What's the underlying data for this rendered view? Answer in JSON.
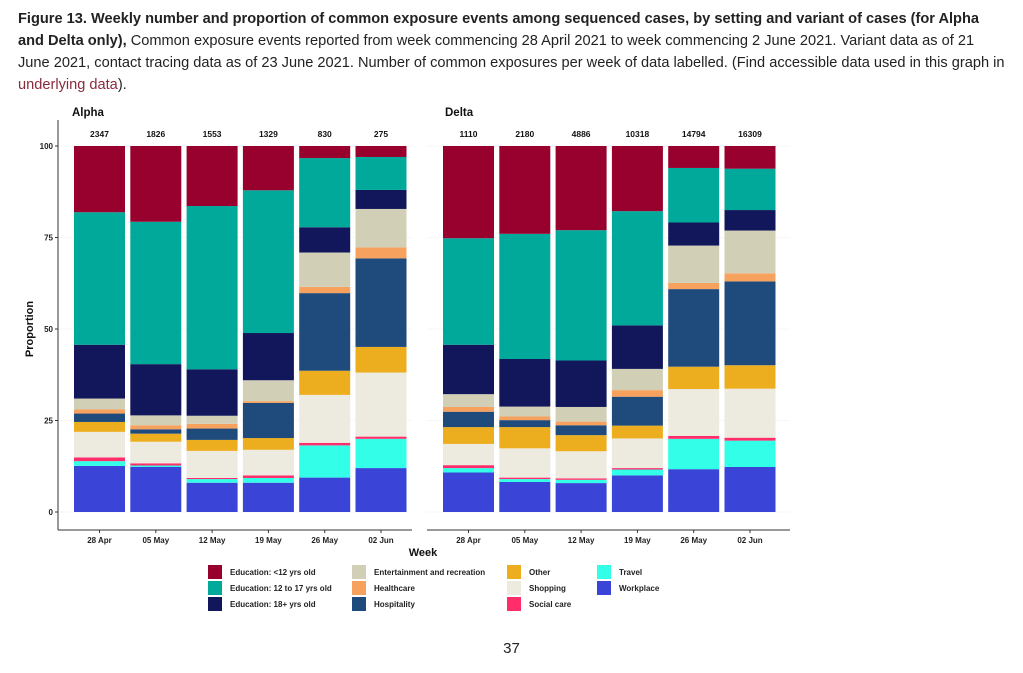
{
  "caption": {
    "bold": "Figure 13. Weekly number and proportion of common exposure events among sequenced cases, by setting and variant of cases (for Alpha and Delta only),",
    "text": " Common exposure events reported from week commencing 28 April 2021 to week commencing 2 June 2021. Variant data as of 21 June 2021, contact tracing data as of 23 June 2021. Number of common exposures per week of data labelled. (Find accessible data used in this graph in ",
    "link": "underlying data",
    "end": ")."
  },
  "page_number": "37",
  "chart_data": {
    "type": "bar",
    "stacked": true,
    "ylabel": "Proportion",
    "xlabel": "Week",
    "ylim": [
      0,
      100
    ],
    "yticks": [
      0,
      25,
      50,
      75,
      100
    ],
    "categories": [
      "28 Apr",
      "05 May",
      "12 May",
      "19 May",
      "26 May",
      "02 Jun"
    ],
    "legend_position": "bottom",
    "settings": [
      {
        "name": "Workplace",
        "color": "#3a44d6"
      },
      {
        "name": "Travel",
        "color": "#33ffe8"
      },
      {
        "name": "Social care",
        "color": "#ff2e6a"
      },
      {
        "name": "Shopping",
        "color": "#edeae0"
      },
      {
        "name": "Other",
        "color": "#ecae1e"
      },
      {
        "name": "Hospitality",
        "color": "#1f4a7c"
      },
      {
        "name": "Healthcare",
        "color": "#f6a25e"
      },
      {
        "name": "Entertainment and recreation",
        "color": "#d1cfb6"
      },
      {
        "name": "Education: 18+ yrs old",
        "color": "#11175a"
      },
      {
        "name": "Education: 12 to 17 yrs old",
        "color": "#00a99a"
      },
      {
        "name": "Education: <12 yrs old",
        "color": "#98002e"
      }
    ],
    "legend_columns": [
      [
        "Education: <12 yrs old",
        "Education: 12 to 17 yrs old",
        "Education: 18+ yrs old"
      ],
      [
        "Entertainment and recreation",
        "Healthcare",
        "Hospitality"
      ],
      [
        "Other",
        "Shopping",
        "Social care"
      ],
      [
        "Travel",
        "Workplace"
      ]
    ],
    "panels": [
      {
        "title": "Alpha",
        "totals": [
          2347,
          1826,
          1553,
          1329,
          830,
          275
        ],
        "series": [
          {
            "name": "Workplace",
            "values": [
              12.6,
              12.3,
              8.0,
              8.0,
              9.4,
              12.0
            ]
          },
          {
            "name": "Travel",
            "values": [
              1.3,
              0.4,
              1.0,
              1.3,
              8.8,
              8.0
            ]
          },
          {
            "name": "Social care",
            "values": [
              1.0,
              0.6,
              0.3,
              0.7,
              0.7,
              0.6
            ]
          },
          {
            "name": "Shopping",
            "values": [
              7.0,
              5.9,
              7.4,
              7.0,
              13.1,
              17.5
            ]
          },
          {
            "name": "Other",
            "values": [
              2.7,
              2.2,
              3.0,
              3.2,
              6.6,
              7.0
            ]
          },
          {
            "name": "Hospitality",
            "values": [
              2.3,
              1.2,
              3.1,
              9.6,
              21.2,
              24.2
            ]
          },
          {
            "name": "Healthcare",
            "values": [
              1.1,
              1.1,
              1.3,
              0.5,
              1.7,
              3.0
            ]
          },
          {
            "name": "Entertainment and recreation",
            "values": [
              3.0,
              2.7,
              2.2,
              5.7,
              9.4,
              10.5
            ]
          },
          {
            "name": "Education: 18+ yrs old",
            "values": [
              14.7,
              14.0,
              12.7,
              12.9,
              6.9,
              5.2
            ]
          },
          {
            "name": "Education: 12 to 17 yrs old",
            "values": [
              36.2,
              38.9,
              44.6,
              39.0,
              18.9,
              9.0
            ]
          },
          {
            "name": "Education: <12 yrs old",
            "values": [
              18.1,
              20.7,
              16.4,
              12.1,
              3.3,
              3.0
            ]
          }
        ]
      },
      {
        "title": "Delta",
        "totals": [
          1110,
          2180,
          4886,
          10318,
          14794,
          16309
        ],
        "series": [
          {
            "name": "Workplace",
            "values": [
              10.8,
              8.2,
              7.9,
              10.0,
              11.7,
              12.3
            ]
          },
          {
            "name": "Travel",
            "values": [
              1.2,
              0.8,
              0.9,
              1.6,
              8.3,
              7.2
            ]
          },
          {
            "name": "Social care",
            "values": [
              0.8,
              0.4,
              0.4,
              0.4,
              0.8,
              0.8
            ]
          },
          {
            "name": "Shopping",
            "values": [
              5.8,
              8.0,
              7.4,
              8.1,
              12.8,
              13.4
            ]
          },
          {
            "name": "Other",
            "values": [
              4.6,
              5.8,
              4.4,
              3.5,
              6.1,
              6.4
            ]
          },
          {
            "name": "Hospitality",
            "values": [
              4.2,
              1.9,
              2.7,
              7.9,
              21.2,
              22.9
            ]
          },
          {
            "name": "Healthcare",
            "values": [
              1.3,
              1.0,
              1.0,
              1.8,
              1.7,
              2.2
            ]
          },
          {
            "name": "Entertainment and recreation",
            "values": [
              3.5,
              2.7,
              4.0,
              5.8,
              10.2,
              11.7
            ]
          },
          {
            "name": "Education: 18+ yrs old",
            "values": [
              13.5,
              13.0,
              12.7,
              11.9,
              6.3,
              5.6
            ]
          },
          {
            "name": "Education: 12 to 17 yrs old",
            "values": [
              29.1,
              34.2,
              35.6,
              31.2,
              14.9,
              11.3
            ]
          },
          {
            "name": "Education: <12 yrs old",
            "values": [
              25.2,
              24.0,
              23.0,
              17.8,
              6.0,
              6.2
            ]
          }
        ]
      }
    ]
  }
}
